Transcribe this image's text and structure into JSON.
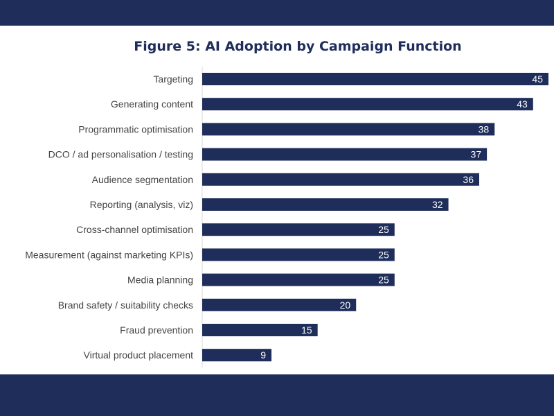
{
  "chart_data": {
    "type": "bar",
    "orientation": "horizontal",
    "title": "Figure 5: AI Adoption by Campaign Function",
    "categories": [
      "Targeting",
      "Generating content",
      "Programmatic optimisation",
      "DCO / ad personalisation / testing",
      "Audience segmentation",
      "Reporting (analysis, viz)",
      "Cross-channel optimisation",
      "Measurement (against marketing KPIs)",
      "Media planning",
      "Brand safety / suitability checks",
      "Fraud prevention",
      "Virtual product placement"
    ],
    "values": [
      45,
      43,
      38,
      37,
      36,
      32,
      25,
      25,
      25,
      20,
      15,
      9
    ],
    "xlim": [
      0,
      45
    ],
    "grid": false,
    "legend": "none",
    "bar_color": "#1e2d5a",
    "value_label_color": "#ffffff"
  },
  "colors": {
    "band": "#1e2d5a",
    "title": "#1e2d5a",
    "category_text": "#444444",
    "axis_line": "#d9d9d9"
  }
}
